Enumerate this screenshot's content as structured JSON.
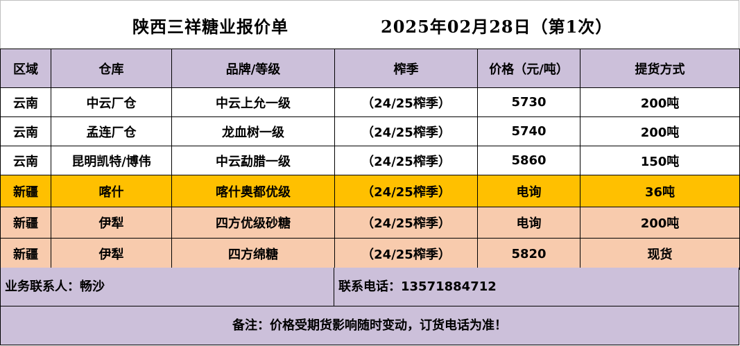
{
  "title": {
    "main": "陕西三祥糖业报价单",
    "date": "2025年02月28日（第1次）"
  },
  "headers": [
    "区域",
    "仓库",
    "品牌/等级",
    "榨季",
    "价格（元/吨）",
    "提货方式"
  ],
  "rows": [
    {
      "region": "云南",
      "warehouse": "中云厂仓",
      "brand": "中云上允一级",
      "season": "（24/25榨季）",
      "price": "5730",
      "delivery": "200吨",
      "color": "#ffffff"
    },
    {
      "region": "云南",
      "warehouse": "孟连厂仓",
      "brand": "龙血树一级",
      "season": "（24/25榨季）",
      "price": "5740",
      "delivery": "200吨",
      "color": "#ffffff"
    },
    {
      "region": "云南",
      "warehouse": "昆明凯特/博伟",
      "brand": "中云勐腊一级",
      "season": "（24/25榨季）",
      "price": "5860",
      "delivery": "150吨",
      "color": "#ffffff"
    },
    {
      "region": "新疆",
      "warehouse": "喀什",
      "brand": "喀什奥都优级",
      "season": "（24/25榨季）",
      "price": "电询",
      "delivery": "36吨",
      "color": "#ffc000"
    },
    {
      "region": "新疆",
      "warehouse": "伊犁",
      "brand": "四方优级砂糖",
      "season": "（24/25榨季）",
      "price": "电询",
      "delivery": "200吨",
      "color": "#f8cbad"
    },
    {
      "region": "新疆",
      "warehouse": "伊犁",
      "brand": "四方绵糖",
      "season": "（24/25榨季）",
      "price": "5820",
      "delivery": "现货",
      "color": "#f8cbad"
    }
  ],
  "footer": {
    "contact_person": "业务联系人：畅沙",
    "contact_phone": "联系电话：13571884712",
    "note": "备注：价格受期货影响随时变动，订货电话为准！"
  },
  "colors": {
    "header_bg": "#ccc0da",
    "highlight_yellow": "#ffc000",
    "highlight_peach": "#f8cbad"
  }
}
